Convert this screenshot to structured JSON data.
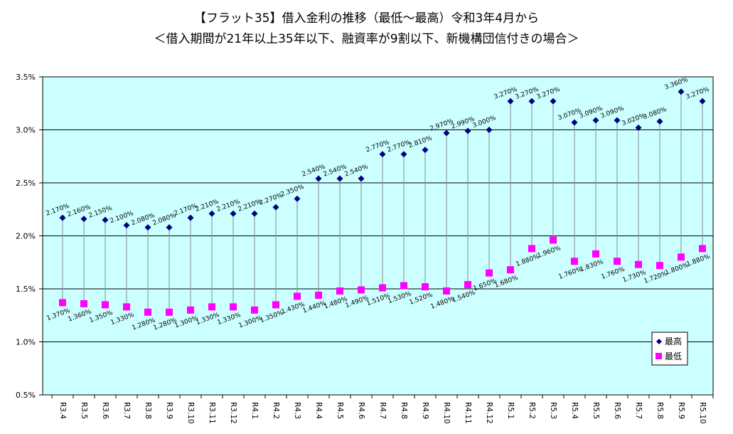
{
  "title_line1": "【フラット35】借入金利の推移（最低～最高）令和3年4月から",
  "title_line2": "＜借入期間が21年以上35年以下、融資率が9割以下、新機構団信付きの場合＞",
  "chart_data": {
    "type": "scatter",
    "title": "【フラット35】借入金利の推移（最低～最高）令和3年4月から",
    "subtitle": "＜借入期間が21年以上35年以下、融資率が9割以下、新機構団信付きの場合＞",
    "xlabel": "",
    "ylabel": "",
    "ylim": [
      0.5,
      3.5
    ],
    "y_ticks": [
      "0.5%",
      "1.0%",
      "1.5%",
      "2.0%",
      "2.5%",
      "3.0%",
      "3.5%"
    ],
    "grid": true,
    "legend_position": "bottom-right",
    "categories": [
      "R3.4",
      "R3.5",
      "R3.6",
      "R3.7",
      "R3.8",
      "R3.9",
      "R3.10",
      "R3.11",
      "R3.12",
      "R4.1",
      "R4.2",
      "R4.3",
      "R4.4",
      "R4.5",
      "R4.6",
      "R4.7",
      "R4.8",
      "R4.9",
      "R4.10",
      "R4.11",
      "R4.12",
      "R5.1",
      "R5.2",
      "R5.3",
      "R5.4",
      "R5.5",
      "R5.6",
      "R5.7",
      "R5.8",
      "R5.9",
      "R5.10"
    ],
    "series": [
      {
        "name": "最高",
        "color": "#000080",
        "marker": "diamond",
        "values": [
          2.17,
          2.16,
          2.15,
          2.1,
          2.08,
          2.08,
          2.17,
          2.21,
          2.21,
          2.21,
          2.27,
          2.35,
          2.54,
          2.54,
          2.54,
          2.77,
          2.77,
          2.81,
          2.97,
          2.99,
          3.0,
          3.27,
          3.27,
          3.27,
          3.07,
          3.09,
          3.09,
          3.02,
          3.08,
          3.36,
          3.27
        ],
        "labels": [
          "2.170%",
          "2.160%",
          "2.150%",
          "2.100%",
          "2.080%",
          "2.080%",
          "2.170%",
          "2.210%",
          "2.210%",
          "2.210%",
          "2.270%",
          "2.350%",
          "2.540%",
          "2.540%",
          "2.540%",
          "2.770%",
          "2.770%",
          "2.810%",
          "2.970%",
          "2.990%",
          "3.000%",
          "3.270%",
          "3.270%",
          "3.270%",
          "3.070%",
          "3.090%",
          "3.090%",
          "3.020%",
          "3.080%",
          "3.360%",
          "3.270%"
        ]
      },
      {
        "name": "最低",
        "color": "#ff00ff",
        "marker": "square",
        "values": [
          1.37,
          1.36,
          1.35,
          1.33,
          1.28,
          1.28,
          1.3,
          1.33,
          1.33,
          1.3,
          1.35,
          1.43,
          1.44,
          1.48,
          1.49,
          1.51,
          1.53,
          1.52,
          1.48,
          1.54,
          1.65,
          1.68,
          1.88,
          1.96,
          1.76,
          1.83,
          1.76,
          1.73,
          1.72,
          1.8,
          1.88
        ],
        "labels": [
          "1.370%",
          "1.360%",
          "1.350%",
          "1.330%",
          "1.280%",
          "1.280%",
          "1.300%",
          "1.330%",
          "1.330%",
          "1.300%",
          "1.350%",
          "1.430%",
          "1.440%",
          "1.480%",
          "1.490%",
          "1.510%",
          "1.530%",
          "1.520%",
          "1.480%",
          "1.540%",
          "1.650%",
          "1.680%",
          "1.880%",
          "1.960%",
          "1.760%",
          "1.830%",
          "1.760%",
          "1.730%",
          "1.720%",
          "1.800%",
          "1.880%"
        ]
      }
    ],
    "colors": {
      "plot_background": "#ccffff",
      "high_line": "#8a8a8a",
      "axis": "#000000"
    }
  }
}
